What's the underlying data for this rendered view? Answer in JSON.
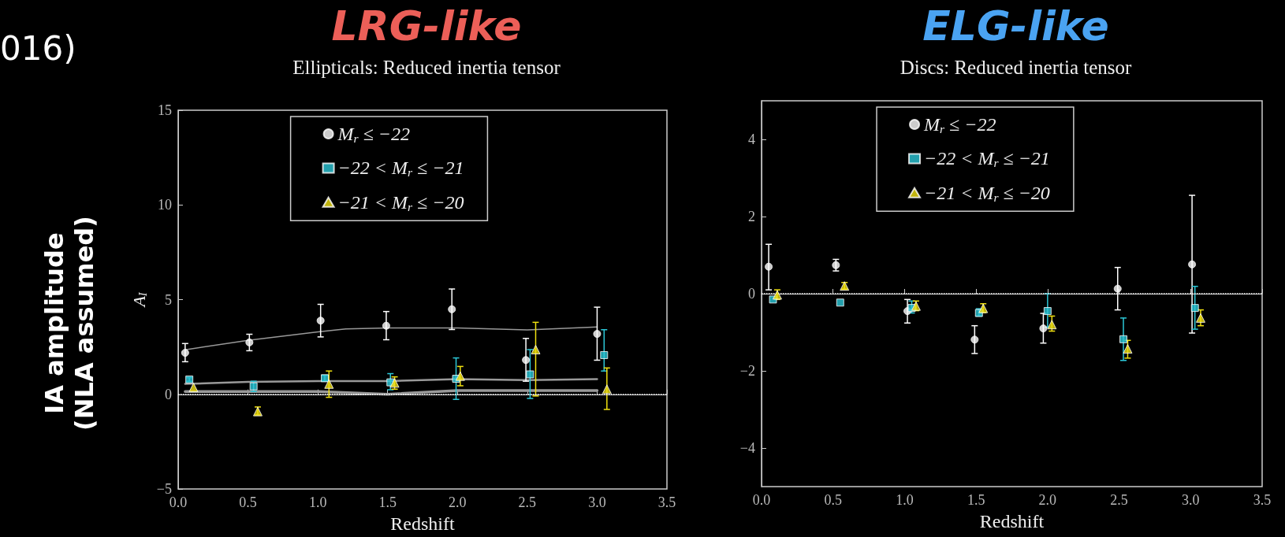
{
  "chart_data": [
    {
      "type": "scatter",
      "title": "LRG-like",
      "subtitle": "Ellipticals: Reduced inertia tensor",
      "xlabel": "Redshift",
      "ylabel": "A$_{I}$",
      "annotations": [
        "016)",
        "IA amplitude\n(NLA assumed)"
      ],
      "xlim": [
        0,
        3.5
      ],
      "ylim": [
        -5,
        15
      ],
      "xticks": [
        {
          "value": 0,
          "label": "0.0"
        },
        {
          "value": 0.5,
          "label": "0.5"
        },
        {
          "value": 1,
          "label": "1.0"
        },
        {
          "value": 1.5,
          "label": "1.5"
        },
        {
          "value": 2,
          "label": "2.0"
        },
        {
          "value": 2.5,
          "label": "2.5"
        },
        {
          "value": 3,
          "label": "3.0"
        },
        {
          "value": 3.5,
          "label": "3.5"
        }
      ],
      "yticks": [
        {
          "value": -5,
          "label": "−5"
        },
        0,
        5,
        10,
        15
      ],
      "grid": false,
      "legend": "top",
      "ref_lines": [
        {
          "axis": "y",
          "value": 0,
          "color": "#ffffff",
          "line_style": "dotted"
        }
      ],
      "series": [
        {
          "name": "M$_{r}$ ≤ −22",
          "color": "#ffffff",
          "marker": "circle",
          "x": [
            0.05,
            0.51,
            1.02,
            1.49,
            1.96,
            2.49,
            3.0
          ],
          "values": [
            2.19,
            2.74,
            3.89,
            3.62,
            4.49,
            1.81,
            3.19
          ],
          "errors": [
            [
              1.72,
              2.68
            ],
            [
              2.3,
              3.17
            ],
            [
              3.03,
              4.75
            ],
            [
              2.88,
              4.37
            ],
            [
              3.42,
              5.56
            ],
            [
              0.69,
              2.95
            ],
            [
              1.8,
              4.6
            ]
          ]
        },
        {
          "name": "−22 < M$_{r}$ ≤ −21",
          "color": "#2cc8d8",
          "marker": "square",
          "x": [
            0.08,
            0.54,
            1.05,
            1.52,
            1.99,
            2.52,
            3.05
          ],
          "values": [
            0.78,
            0.42,
            0.85,
            0.63,
            0.82,
            1.05,
            2.07
          ],
          "errors": [
            [
              0.68,
              0.88
            ],
            [
              0.15,
              0.69
            ],
            [
              0.7,
              1.0
            ],
            [
              0.24,
              1.09
            ],
            [
              -0.27,
              1.92
            ],
            [
              -0.22,
              2.36
            ],
            [
              1.23,
              3.41
            ]
          ]
        },
        {
          "name": "−21 < M$_{r}$ ≤ −20",
          "color": "#f0e010",
          "marker": "triangle",
          "x": [
            0.11,
            0.57,
            1.08,
            1.55,
            2.02,
            2.56,
            3.07
          ],
          "values": [
            0.36,
            -0.91,
            0.54,
            0.6,
            0.96,
            2.36,
            0.27
          ],
          "errors": [
            null,
            [
              -1.09,
              -0.67
            ],
            [
              -0.16,
              1.23
            ],
            [
              0.27,
              0.92
            ],
            [
              0.45,
              1.47
            ],
            [
              -0.09,
              3.8
            ],
            [
              -0.8,
              1.39
            ]
          ]
        },
        {
          "type": "line",
          "color": "#999999",
          "marker": "none",
          "x": [
            0.05,
            0.5,
            1.0,
            1.2,
            1.5,
            2.0,
            2.5,
            3.0
          ],
          "values": [
            2.35,
            2.85,
            3.3,
            3.45,
            3.5,
            3.5,
            3.4,
            3.55
          ]
        },
        {
          "type": "line",
          "color": "#999999",
          "marker": "none",
          "x": [
            0.05,
            0.5,
            1.0,
            1.5,
            2.0,
            2.5,
            3.0
          ],
          "values": [
            0.55,
            0.65,
            0.7,
            0.7,
            0.8,
            0.75,
            0.8
          ]
        },
        {
          "type": "line",
          "color": "#999999",
          "marker": "none",
          "x": [
            0.05,
            1.0,
            1.5,
            2.0,
            3.0
          ],
          "values": [
            0.15,
            0.15,
            0.0,
            0.2,
            0.2
          ]
        }
      ]
    },
    {
      "type": "scatter",
      "title": "ELG-like",
      "subtitle": "Discs: Reduced inertia tensor",
      "xlabel": "Redshift",
      "xlim": [
        0,
        3.5
      ],
      "ylim": [
        -5,
        5
      ],
      "xticks": [
        {
          "value": 0,
          "label": "0.0"
        },
        {
          "value": 0.5,
          "label": "0.5"
        },
        {
          "value": 1,
          "label": "1.0"
        },
        {
          "value": 1.5,
          "label": "1.5"
        },
        {
          "value": 2,
          "label": "2.0"
        },
        {
          "value": 2.5,
          "label": "2.5"
        },
        {
          "value": 3,
          "label": "3.0"
        },
        {
          "value": 3.5,
          "label": "3.5"
        }
      ],
      "yticks": [
        {
          "value": -4,
          "label": "−4"
        },
        {
          "value": -2,
          "label": "−2"
        },
        0,
        2,
        4
      ],
      "grid": false,
      "legend": "top",
      "ref_lines": [
        {
          "axis": "y",
          "value": 0,
          "color": "#ffffff",
          "line_style": "dotted"
        }
      ],
      "series": [
        {
          "name": "M$_{r}$ ≤ −22",
          "color": "#ffffff",
          "marker": "circle",
          "x": [
            0.05,
            0.52,
            1.02,
            1.49,
            1.97,
            2.49,
            3.01
          ],
          "values": [
            0.7,
            0.74,
            -0.45,
            -1.19,
            -0.9,
            0.13,
            0.76
          ],
          "errors": [
            [
              0.1,
              1.28
            ],
            [
              0.59,
              0.89
            ],
            [
              -0.76,
              -0.15
            ],
            [
              -1.55,
              -0.83
            ],
            [
              -1.28,
              -0.51
            ],
            [
              -0.42,
              0.68
            ],
            [
              -1.02,
              2.55
            ]
          ]
        },
        {
          "name": "−22 < M$_{r}$ ≤ −21",
          "color": "#2cc8d8",
          "marker": "square",
          "x": [
            0.08,
            0.55,
            1.05,
            1.52,
            2.0,
            2.53,
            3.03
          ],
          "values": [
            -0.15,
            -0.23,
            -0.37,
            -0.5,
            -0.45,
            -1.18,
            -0.37
          ],
          "errors": [
            null,
            null,
            [
              -0.5,
              -0.19
            ],
            [
              -0.58,
              -0.39
            ],
            [
              -0.87,
              0.0
            ],
            [
              -1.73,
              -0.63
            ],
            [
              -0.92,
              0.19
            ]
          ]
        },
        {
          "name": "−21 < M$_{r}$ ≤ −20",
          "color": "#f0e010",
          "marker": "triangle",
          "x": [
            0.11,
            0.58,
            1.08,
            1.55,
            2.03,
            2.56,
            3.07
          ],
          "values": [
            -0.03,
            0.2,
            -0.32,
            -0.38,
            -0.8,
            -1.43,
            -0.63
          ],
          "errors": [
            [
              -0.15,
              0.1
            ],
            [
              0.12,
              0.29
            ],
            [
              -0.44,
              -0.19
            ],
            [
              -0.49,
              -0.26
            ],
            [
              -0.97,
              -0.58
            ],
            [
              -1.67,
              -1.21
            ],
            [
              -0.83,
              -0.42
            ]
          ]
        }
      ]
    }
  ]
}
